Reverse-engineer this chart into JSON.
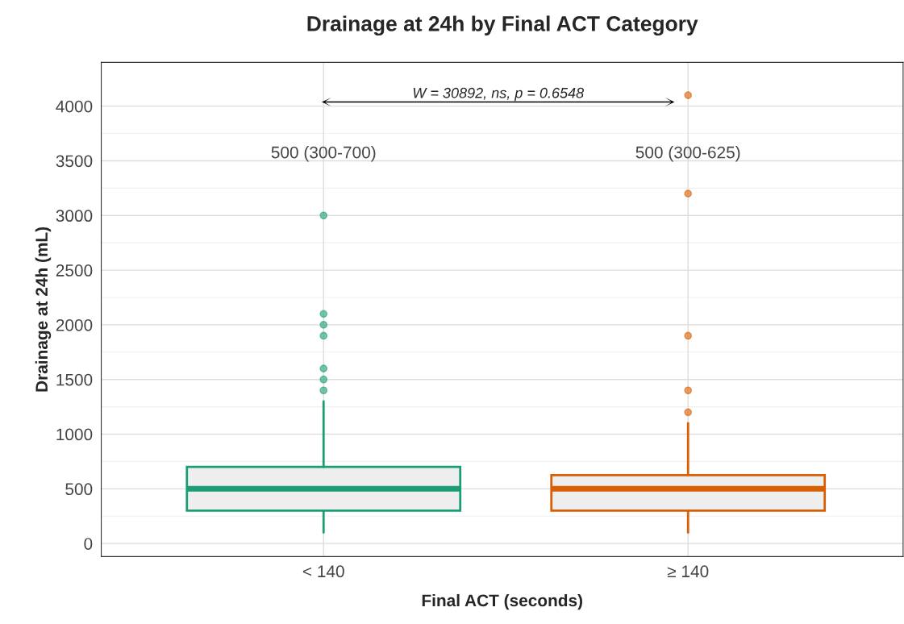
{
  "chart_data": {
    "type": "box",
    "title": "Drainage at 24h by Final ACT Category",
    "xlabel": "Final ACT (seconds)",
    "ylabel": "Drainage at 24h (mL)",
    "categories": [
      "< 140",
      "≥ 140"
    ],
    "series": [
      {
        "color": "#1b9e77",
        "boxes": [
          {
            "low": 100,
            "q1": 300,
            "median": 500,
            "q3": 700,
            "high": 1300,
            "outliers": [
              1400,
              1500,
              1600,
              1900,
              2000,
              2100,
              3000
            ]
          },
          null
        ]
      },
      {
        "color": "#d95f02",
        "boxes": [
          null,
          {
            "low": 100,
            "q1": 300,
            "median": 500,
            "q3": 625,
            "high": 1100,
            "outliers": [
              1200,
              1400,
              1900,
              3200,
              4100
            ]
          }
        ]
      }
    ],
    "ylim": [
      -120,
      4400
    ],
    "yticks": [
      0,
      500,
      1000,
      1500,
      2000,
      2500,
      3000,
      3500,
      4000
    ],
    "grid": true,
    "annotations": [
      "W = 30892, ns, p = 0.6548",
      "500 (300-700)",
      "500 (300-625)"
    ]
  }
}
